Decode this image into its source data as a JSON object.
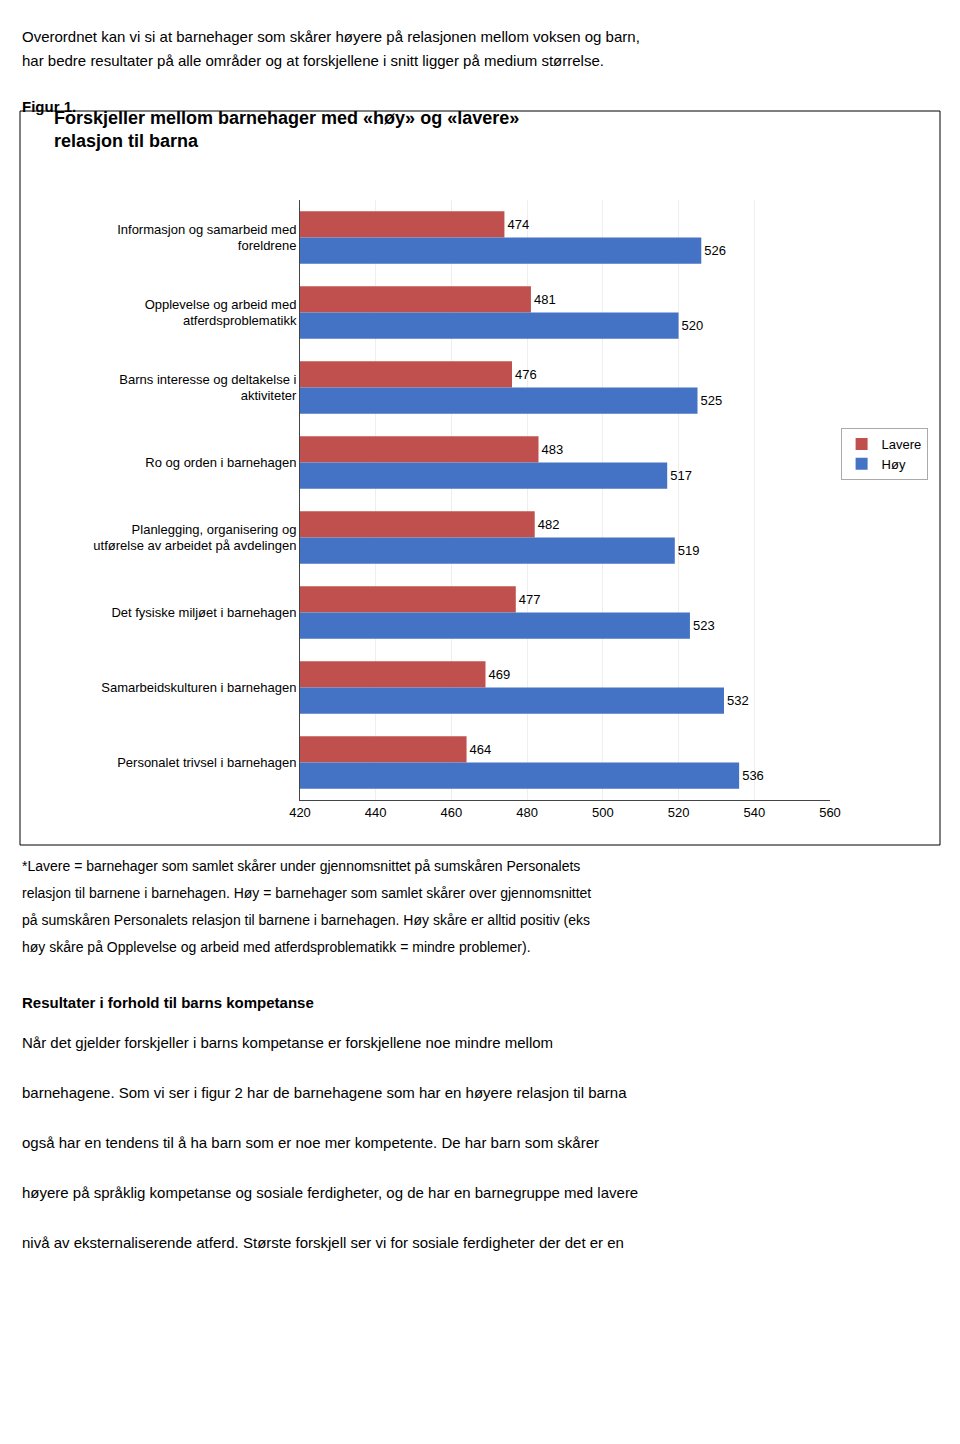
{
  "chart_data": {
    "type": "bar",
    "orientation": "horizontal",
    "title": "Forskjeller mellom barnehager med «høy» og «lavere»\nrelasjon til barna",
    "categories": [
      "Informasjon og samarbeid med\nforeldrene",
      "Opplevelse og arbeid med\natferdsproblematikk",
      "Barns interesse og deltakelse i\naktiviteter",
      "Ro og orden i barnehagen",
      "Planlegging, organisering og\nutførelse av arbeidet på avdelingen",
      "Det fysiske miljøet i barnehagen",
      "Samarbeidskulturen i barnehagen",
      "Personalet trivsel i barnehagen"
    ],
    "series": [
      {
        "name": "Lavere",
        "color": "#C0504D",
        "values": [
          474,
          481,
          476,
          483,
          482,
          477,
          469,
          464
        ]
      },
      {
        "name": "Høy",
        "color": "#4472C4",
        "values": [
          526,
          520,
          525,
          517,
          519,
          523,
          532,
          536
        ]
      }
    ],
    "xlim": [
      420,
      560
    ],
    "xticks": [
      420,
      440,
      460,
      480,
      500,
      520,
      540,
      560
    ],
    "grid": true,
    "legend": "right",
    "data_labels": true,
    "annotations": [
      "Overordnet kan vi si at barnehager som skårer høyere på relasjonen mellom voksen og barn,\nhar bedre resultater på alle områder og at forskjellene i snitt ligger på medium størrelse.",
      "Figur 1.",
      "*Lavere = barnehager som samlet skårer under gjennomsnittet på sumskåren Personalets\nrelasjon til barnene i barnehagen. Høy = barnehager som samlet skårer over gjennomsnittet\npå sumskåren Personalets relasjon til barnene i barnehagen. Høy skåre er alltid positiv (eks\nhøy skåre på Opplevelse og arbeid med atferdsproblematikk = mindre problemer).",
      "Resultater i forhold til barns kompetanse",
      "Når det gjelder forskjeller i barns kompetanse er forskjellene noe mindre mellom\nbarnehagene. Som vi ser i figur 2 har de barnehagene som har en høyere relasjon til barna\nogså har en tendens til å ha barn som er noe mer kompetente. De har barn som skårer\nhøyere på språklig kompetanse og sosiale ferdigheter, og de har en barnegruppe med lavere\nnivå av eksternaliserende atferd. Største forskjell ser vi for sosiale ferdigheter der det er en"
    ]
  }
}
